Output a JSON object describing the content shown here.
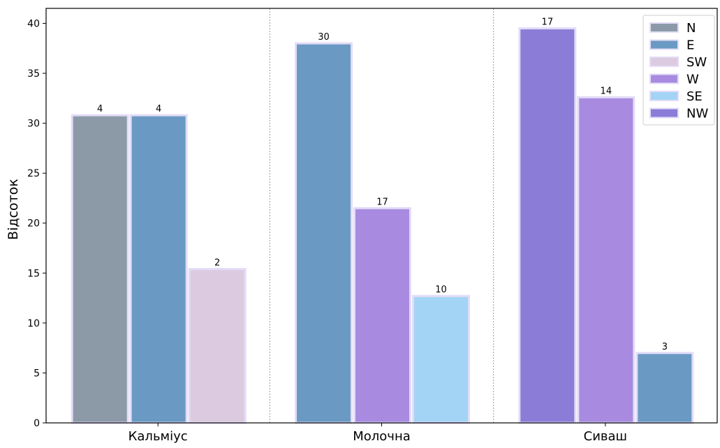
{
  "chart_data": {
    "type": "bar",
    "ylabel": "Відсоток",
    "xlabel": "",
    "title": "",
    "ylim": [
      0,
      41.5
    ],
    "yticks": [
      0,
      5,
      10,
      15,
      20,
      25,
      30,
      35,
      40
    ],
    "grid": false,
    "group_separators": true,
    "legend_position": "top-right",
    "legend": [
      {
        "name": "N",
        "color": "#8c9aa8"
      },
      {
        "name": "E",
        "color": "#6a9ac4"
      },
      {
        "name": "SW",
        "color": "#dccbe0"
      },
      {
        "name": "W",
        "color": "#a88be0"
      },
      {
        "name": "SE",
        "color": "#a3d4f5"
      },
      {
        "name": "NW",
        "color": "#8b7cd8"
      }
    ],
    "groups": [
      {
        "category": "Кальміус",
        "bars": [
          {
            "direction": "N",
            "value": 30.8,
            "label": "4"
          },
          {
            "direction": "E",
            "value": 30.8,
            "label": "4"
          },
          {
            "direction": "SW",
            "value": 15.4,
            "label": "2"
          }
        ]
      },
      {
        "category": "Молочна",
        "bars": [
          {
            "direction": "E",
            "value": 38.0,
            "label": "30"
          },
          {
            "direction": "W",
            "value": 21.5,
            "label": "17"
          },
          {
            "direction": "SE",
            "value": 12.7,
            "label": "10"
          }
        ]
      },
      {
        "category": "Сиваш",
        "bars": [
          {
            "direction": "NW",
            "value": 39.5,
            "label": "17"
          },
          {
            "direction": "W",
            "value": 32.6,
            "label": "14"
          },
          {
            "direction": "E",
            "value": 7.0,
            "label": "3"
          }
        ]
      }
    ]
  }
}
